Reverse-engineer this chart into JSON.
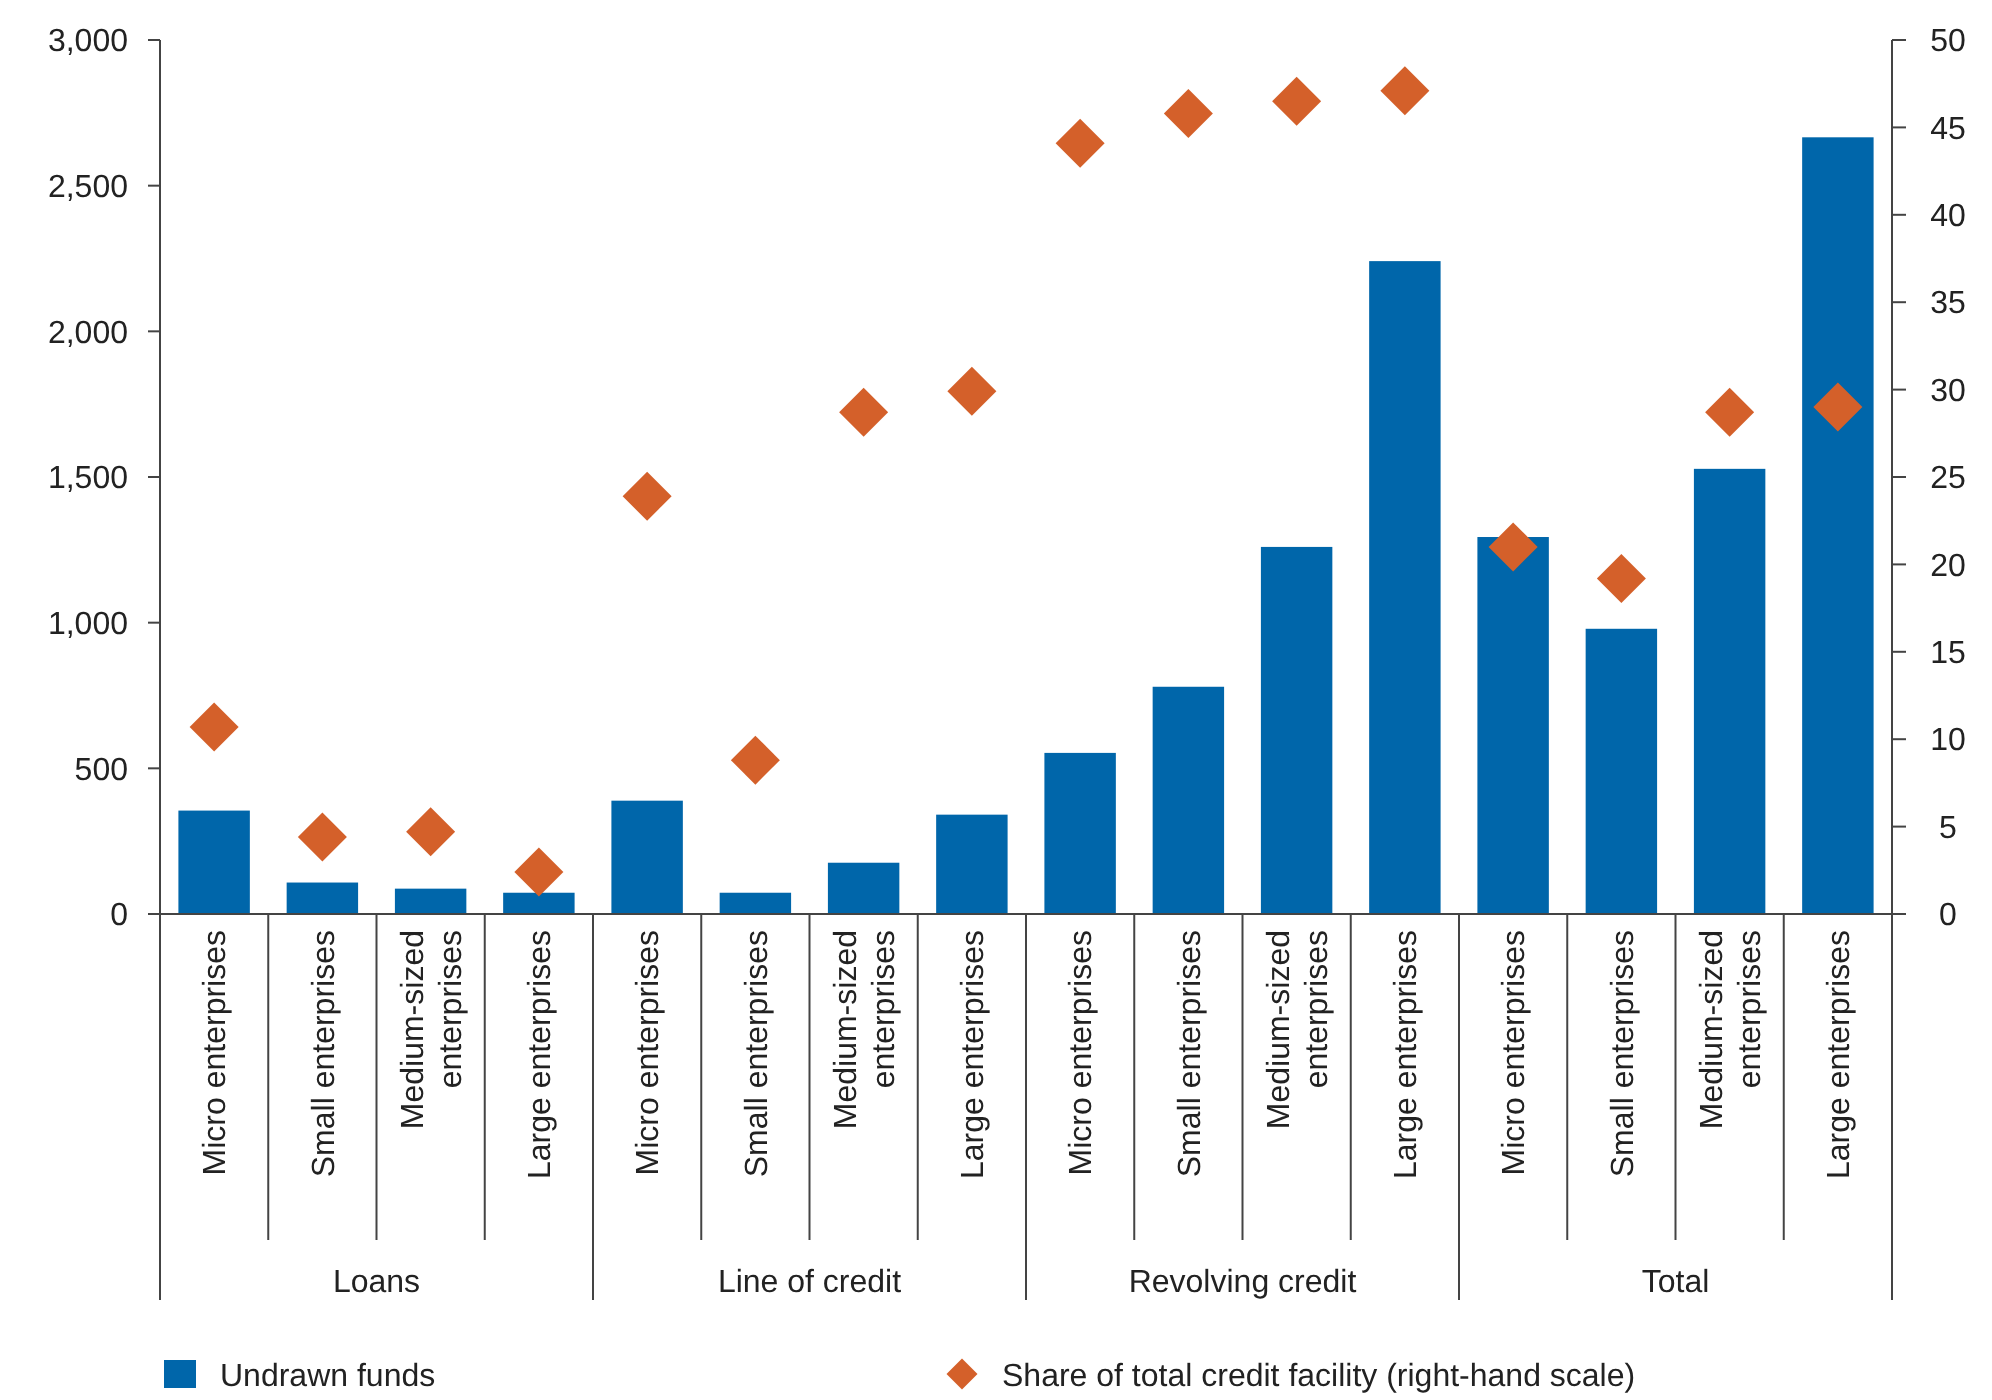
{
  "chart_data": {
    "type": "bar",
    "categories": [
      "Micro enterprises",
      "Small enterprises",
      "Medium-sized enterprises",
      "Large enterprises",
      "Micro enterprises",
      "Small enterprises",
      "Medium-sized enterprises",
      "Large enterprises",
      "Micro enterprises",
      "Small enterprises",
      "Medium-sized enterprises",
      "Large enterprises",
      "Micro enterprises",
      "Small enterprises",
      "Medium-sized enterprises",
      "Large enterprises"
    ],
    "series": [
      {
        "name": "Undrawn funds",
        "color": "#0066aa",
        "values": [
          355,
          108,
          87,
          73,
          389,
          73,
          176,
          341,
          553,
          780,
          1260,
          2241,
          1294,
          979,
          1528,
          2666
        ]
      },
      {
        "name": "Share of total credit facility (right-hand scale)",
        "type": "scatter",
        "axis": "y2",
        "color": "#d4602a",
        "values": [
          10.7,
          4.4,
          4.7,
          2.4,
          23.9,
          8.8,
          28.7,
          29.9,
          44.1,
          45.8,
          46.5,
          47.1,
          21.0,
          19.2,
          28.7,
          29.0
        ]
      }
    ],
    "annotations": [
      "Loans",
      "Line of credit",
      "Revolving credit",
      "Total"
    ],
    "ylim": [
      0,
      3000
    ],
    "yticks": [
      {
        "value": 0,
        "label": "0"
      },
      {
        "value": 500,
        "label": "500"
      },
      {
        "value": 1000,
        "label": "1,000"
      },
      {
        "value": 1500,
        "label": "1,500"
      },
      {
        "value": 2000,
        "label": "2,000"
      },
      {
        "value": 2500,
        "label": "2,500"
      },
      {
        "value": 3000,
        "label": "3,000"
      }
    ],
    "y2lim": [
      0,
      50
    ],
    "y2ticks": [
      0,
      5,
      10,
      15,
      20,
      25,
      30,
      35,
      40,
      45,
      50
    ],
    "marker": "diamond",
    "grid": false,
    "legend": "bottom"
  }
}
